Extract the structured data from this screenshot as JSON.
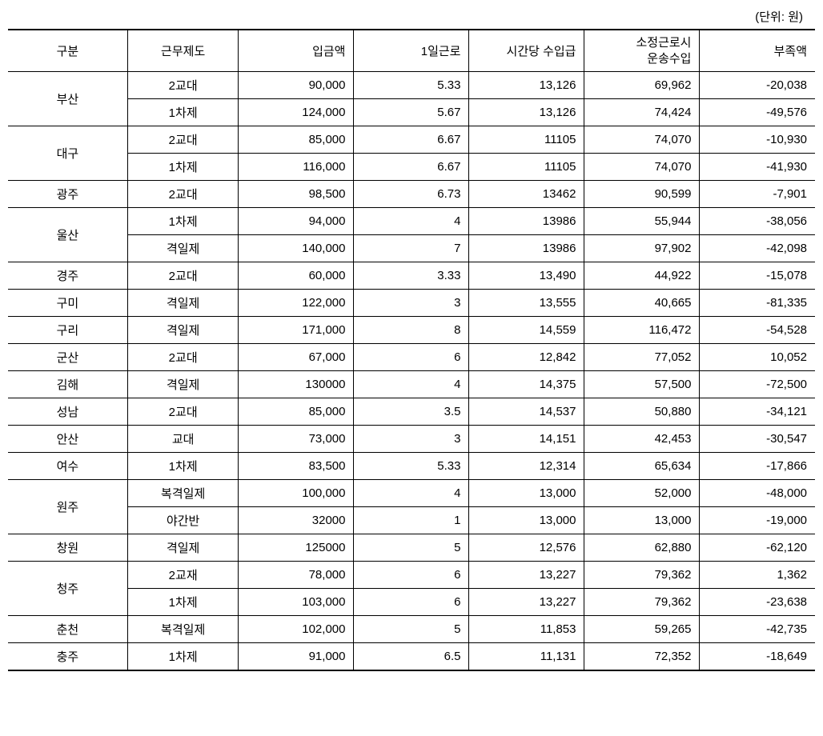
{
  "unit_label": "(단위: 원)",
  "headers": {
    "category": "구분",
    "system": "근무제도",
    "deposit": "입금액",
    "daily_work": "1일근로",
    "hourly_income": "시간당 수입급",
    "regular_income_line1": "소정근로시",
    "regular_income_line2": "운송수입",
    "shortage": "부족액"
  },
  "rows": [
    {
      "category": "부산",
      "rowspan": 2,
      "system": "2교대",
      "deposit": "90,000",
      "daily": "5.33",
      "hourly": "13,126",
      "regular": "69,962",
      "shortage": "-20,038"
    },
    {
      "category": null,
      "system": "1차제",
      "deposit": "124,000",
      "daily": "5.67",
      "hourly": "13,126",
      "regular": "74,424",
      "shortage": "-49,576"
    },
    {
      "category": "대구",
      "rowspan": 2,
      "system": "2교대",
      "deposit": "85,000",
      "daily": "6.67",
      "hourly": "11105",
      "regular": "74,070",
      "shortage": "-10,930"
    },
    {
      "category": null,
      "system": "1차제",
      "deposit": "116,000",
      "daily": "6.67",
      "hourly": "11105",
      "regular": "74,070",
      "shortage": "-41,930"
    },
    {
      "category": "광주",
      "rowspan": 1,
      "system": "2교대",
      "deposit": "98,500",
      "daily": "6.73",
      "hourly": "13462",
      "regular": "90,599",
      "shortage": "-7,901"
    },
    {
      "category": "울산",
      "rowspan": 2,
      "system": "1차제",
      "deposit": "94,000",
      "daily": "4",
      "hourly": "13986",
      "regular": "55,944",
      "shortage": "-38,056"
    },
    {
      "category": null,
      "system": "격일제",
      "deposit": "140,000",
      "daily": "7",
      "hourly": "13986",
      "regular": "97,902",
      "shortage": "-42,098"
    },
    {
      "category": "경주",
      "rowspan": 1,
      "system": "2교대",
      "deposit": "60,000",
      "daily": "3.33",
      "hourly": "13,490",
      "regular": "44,922",
      "shortage": "-15,078"
    },
    {
      "category": "구미",
      "rowspan": 1,
      "system": "격일제",
      "deposit": "122,000",
      "daily": "3",
      "hourly": "13,555",
      "regular": "40,665",
      "shortage": "-81,335"
    },
    {
      "category": "구리",
      "rowspan": 1,
      "system": "격일제",
      "deposit": "171,000",
      "daily": "8",
      "hourly": "14,559",
      "regular": "116,472",
      "shortage": "-54,528"
    },
    {
      "category": "군산",
      "rowspan": 1,
      "system": "2교대",
      "deposit": "67,000",
      "daily": "6",
      "hourly": "12,842",
      "regular": "77,052",
      "shortage": "10,052"
    },
    {
      "category": "김해",
      "rowspan": 1,
      "system": "격일제",
      "deposit": "130000",
      "daily": "4",
      "hourly": "14,375",
      "regular": "57,500",
      "shortage": "-72,500"
    },
    {
      "category": "성남",
      "rowspan": 1,
      "system": "2교대",
      "deposit": "85,000",
      "daily": "3.5",
      "hourly": "14,537",
      "regular": "50,880",
      "shortage": "-34,121"
    },
    {
      "category": "안산",
      "rowspan": 1,
      "system": "교대",
      "deposit": "73,000",
      "daily": "3",
      "hourly": "14,151",
      "regular": "42,453",
      "shortage": "-30,547"
    },
    {
      "category": "여수",
      "rowspan": 1,
      "system": "1차제",
      "deposit": "83,500",
      "daily": "5.33",
      "hourly": "12,314",
      "regular": "65,634",
      "shortage": "-17,866"
    },
    {
      "category": "원주",
      "rowspan": 2,
      "system": "복격일제",
      "deposit": "100,000",
      "daily": "4",
      "hourly": "13,000",
      "regular": "52,000",
      "shortage": "-48,000"
    },
    {
      "category": null,
      "system": "야간반",
      "deposit": "32000",
      "daily": "1",
      "hourly": "13,000",
      "regular": "13,000",
      "shortage": "-19,000"
    },
    {
      "category": "창원",
      "rowspan": 1,
      "system": "격일제",
      "deposit": "125000",
      "daily": "5",
      "hourly": "12,576",
      "regular": "62,880",
      "shortage": "-62,120"
    },
    {
      "category": "청주",
      "rowspan": 2,
      "system": "2교재",
      "deposit": "78,000",
      "daily": "6",
      "hourly": "13,227",
      "regular": "79,362",
      "shortage": "1,362"
    },
    {
      "category": null,
      "system": "1차제",
      "deposit": "103,000",
      "daily": "6",
      "hourly": "13,227",
      "regular": "79,362",
      "shortage": "-23,638"
    },
    {
      "category": "춘천",
      "rowspan": 1,
      "system": "복격일제",
      "deposit": "102,000",
      "daily": "5",
      "hourly": "11,853",
      "regular": "59,265",
      "shortage": "-42,735"
    },
    {
      "category": "충주",
      "rowspan": 1,
      "system": "1차제",
      "deposit": "91,000",
      "daily": "6.5",
      "hourly": "11,131",
      "regular": "72,352",
      "shortage": "-18,649"
    }
  ]
}
